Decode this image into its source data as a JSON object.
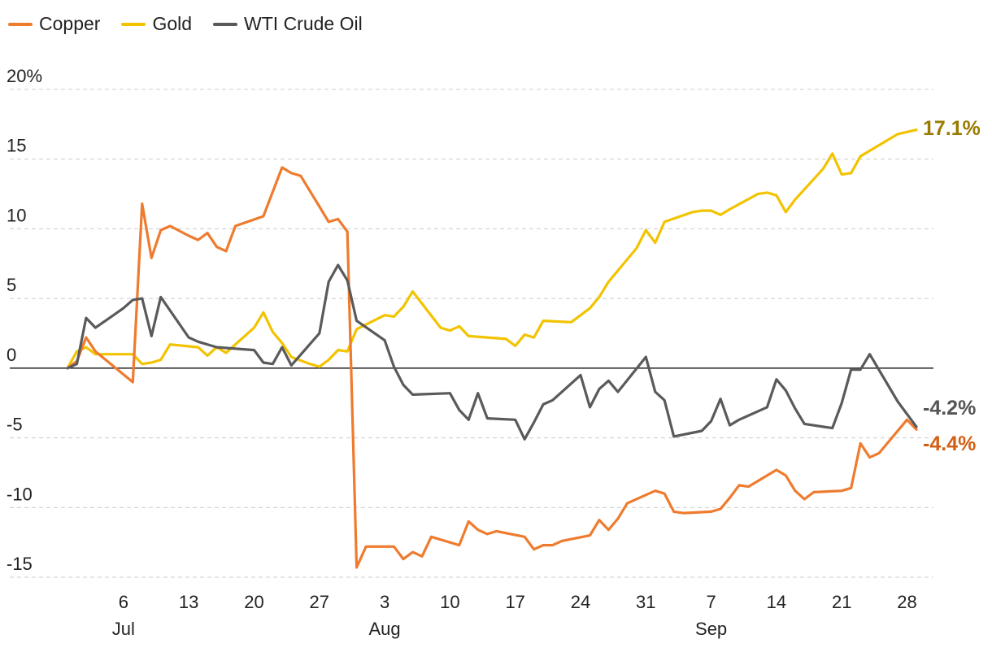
{
  "colors": {
    "copper": "#ee7b2e",
    "gold": "#f2c300",
    "oil": "#5a5a5a",
    "gold_label": "#9a7a00",
    "copper_label": "#d35f14",
    "oil_label": "#555555",
    "grid": "#cccccc",
    "zero_line": "#333333",
    "text": "#222222"
  },
  "chart_data": {
    "type": "line",
    "ylim": [
      -15,
      20
    ],
    "y_ticks": [
      20,
      15,
      10,
      5,
      0,
      -5,
      -10,
      -15
    ],
    "y_tick_labels": [
      "20%",
      "15",
      "10",
      "5",
      "0",
      "-5",
      "-10",
      "-15"
    ],
    "x_ticks": [
      {
        "day": 6,
        "label": "6",
        "month": "Jul"
      },
      {
        "day": 13,
        "label": "13",
        "month": ""
      },
      {
        "day": 20,
        "label": "20",
        "month": ""
      },
      {
        "day": 27,
        "label": "27",
        "month": ""
      },
      {
        "day": 34,
        "label": "3",
        "month": "Aug"
      },
      {
        "day": 41,
        "label": "10",
        "month": ""
      },
      {
        "day": 48,
        "label": "17",
        "month": ""
      },
      {
        "day": 55,
        "label": "24",
        "month": ""
      },
      {
        "day": 62,
        "label": "31",
        "month": ""
      },
      {
        "day": 69,
        "label": "7",
        "month": "Sep"
      },
      {
        "day": 76,
        "label": "14",
        "month": ""
      },
      {
        "day": 83,
        "label": "21",
        "month": ""
      },
      {
        "day": 90,
        "label": "28",
        "month": ""
      }
    ],
    "x_range": [
      0,
      92
    ],
    "series": [
      {
        "name": "Copper",
        "key": "copper",
        "end_label": "-4.4%",
        "points": [
          [
            0,
            0
          ],
          [
            1,
            0.5
          ],
          [
            2,
            2.2
          ],
          [
            3,
            1.2
          ],
          [
            7,
            -1
          ],
          [
            8,
            11.8
          ],
          [
            9,
            7.9
          ],
          [
            10,
            9.9
          ],
          [
            11,
            10.2
          ],
          [
            13,
            9.5
          ],
          [
            14,
            9.2
          ],
          [
            15,
            9.7
          ],
          [
            16,
            8.7
          ],
          [
            17,
            8.4
          ],
          [
            18,
            10.2
          ],
          [
            21,
            10.9
          ],
          [
            23,
            14.4
          ],
          [
            24,
            14.0
          ],
          [
            25,
            13.8
          ],
          [
            27,
            11.6
          ],
          [
            28,
            10.5
          ],
          [
            29,
            10.7
          ],
          [
            30,
            9.8
          ],
          [
            31,
            -14.3
          ],
          [
            32,
            -12.8
          ],
          [
            35,
            -12.8
          ],
          [
            36,
            -13.7
          ],
          [
            37,
            -13.2
          ],
          [
            38,
            -13.5
          ],
          [
            39,
            -12.1
          ],
          [
            42,
            -12.7
          ],
          [
            43,
            -11.0
          ],
          [
            44,
            -11.6
          ],
          [
            45,
            -11.9
          ],
          [
            46,
            -11.7
          ],
          [
            49,
            -12.1
          ],
          [
            50,
            -13.0
          ],
          [
            51,
            -12.7
          ],
          [
            52,
            -12.7
          ],
          [
            53,
            -12.4
          ],
          [
            56,
            -12.0
          ],
          [
            57,
            -10.9
          ],
          [
            58,
            -11.6
          ],
          [
            59,
            -10.8
          ],
          [
            60,
            -9.7
          ],
          [
            63,
            -8.8
          ],
          [
            64,
            -9.0
          ],
          [
            65,
            -10.3
          ],
          [
            66,
            -10.4
          ],
          [
            69,
            -10.3
          ],
          [
            70,
            -10.1
          ],
          [
            71,
            -9.3
          ],
          [
            72,
            -8.4
          ],
          [
            73,
            -8.5
          ],
          [
            76,
            -7.3
          ],
          [
            77,
            -7.7
          ],
          [
            78,
            -8.8
          ],
          [
            79,
            -9.4
          ],
          [
            80,
            -8.9
          ],
          [
            83,
            -8.8
          ],
          [
            84,
            -8.6
          ],
          [
            85,
            -5.4
          ],
          [
            86,
            -6.4
          ],
          [
            87,
            -6.1
          ],
          [
            90,
            -3.7
          ],
          [
            91,
            -4.4
          ]
        ]
      },
      {
        "name": "Gold",
        "key": "gold",
        "end_label": "17.1%",
        "points": [
          [
            0,
            0
          ],
          [
            1,
            1.2
          ],
          [
            2,
            1.5
          ],
          [
            3,
            1.0
          ],
          [
            7,
            1.0
          ],
          [
            8,
            0.3
          ],
          [
            9,
            0.4
          ],
          [
            10,
            0.6
          ],
          [
            11,
            1.7
          ],
          [
            14,
            1.5
          ],
          [
            15,
            0.9
          ],
          [
            16,
            1.5
          ],
          [
            17,
            1.1
          ],
          [
            20,
            2.9
          ],
          [
            21,
            4.0
          ],
          [
            22,
            2.6
          ],
          [
            23,
            1.8
          ],
          [
            24,
            0.8
          ],
          [
            26,
            0.3
          ],
          [
            27,
            0.1
          ],
          [
            28,
            0.6
          ],
          [
            29,
            1.3
          ],
          [
            30,
            1.2
          ],
          [
            31,
            2.8
          ],
          [
            34,
            3.8
          ],
          [
            35,
            3.7
          ],
          [
            36,
            4.4
          ],
          [
            37,
            5.5
          ],
          [
            40,
            2.9
          ],
          [
            41,
            2.7
          ],
          [
            42,
            3.0
          ],
          [
            43,
            2.3
          ],
          [
            47,
            2.1
          ],
          [
            48,
            1.6
          ],
          [
            49,
            2.4
          ],
          [
            50,
            2.2
          ],
          [
            51,
            3.4
          ],
          [
            54,
            3.3
          ],
          [
            55,
            3.8
          ],
          [
            56,
            4.3
          ],
          [
            57,
            5.1
          ],
          [
            58,
            6.2
          ],
          [
            61,
            8.6
          ],
          [
            62,
            9.9
          ],
          [
            63,
            9.0
          ],
          [
            64,
            10.5
          ],
          [
            67,
            11.2
          ],
          [
            68,
            11.3
          ],
          [
            69,
            11.3
          ],
          [
            70,
            11.0
          ],
          [
            71,
            11.4
          ],
          [
            74,
            12.5
          ],
          [
            75,
            12.6
          ],
          [
            76,
            12.4
          ],
          [
            77,
            11.2
          ],
          [
            78,
            12.1
          ],
          [
            81,
            14.3
          ],
          [
            82,
            15.4
          ],
          [
            83,
            13.9
          ],
          [
            84,
            14.0
          ],
          [
            85,
            15.2
          ],
          [
            88,
            16.4
          ],
          [
            89,
            16.8
          ],
          [
            91,
            17.1
          ]
        ]
      },
      {
        "name": "WTI Crude Oil",
        "key": "oil",
        "end_label": "-4.2%",
        "points": [
          [
            0,
            0
          ],
          [
            1,
            0.3
          ],
          [
            2,
            3.6
          ],
          [
            3,
            2.9
          ],
          [
            6,
            4.3
          ],
          [
            7,
            4.9
          ],
          [
            8,
            5.0
          ],
          [
            9,
            2.3
          ],
          [
            10,
            5.1
          ],
          [
            13,
            2.2
          ],
          [
            14,
            1.9
          ],
          [
            16,
            1.5
          ],
          [
            20,
            1.3
          ],
          [
            21,
            0.4
          ],
          [
            22,
            0.3
          ],
          [
            23,
            1.5
          ],
          [
            24,
            0.2
          ],
          [
            27,
            2.5
          ],
          [
            28,
            6.2
          ],
          [
            29,
            7.4
          ],
          [
            30,
            6.3
          ],
          [
            31,
            3.4
          ],
          [
            34,
            2.0
          ],
          [
            35,
            0.1
          ],
          [
            36,
            -1.2
          ],
          [
            37,
            -1.9
          ],
          [
            41,
            -1.8
          ],
          [
            42,
            -3.0
          ],
          [
            43,
            -3.7
          ],
          [
            44,
            -1.8
          ],
          [
            45,
            -3.6
          ],
          [
            48,
            -3.7
          ],
          [
            49,
            -5.1
          ],
          [
            50,
            -3.9
          ],
          [
            51,
            -2.6
          ],
          [
            52,
            -2.3
          ],
          [
            55,
            -0.5
          ],
          [
            56,
            -2.8
          ],
          [
            57,
            -1.5
          ],
          [
            58,
            -0.9
          ],
          [
            59,
            -1.7
          ],
          [
            62,
            0.8
          ],
          [
            63,
            -1.7
          ],
          [
            64,
            -2.3
          ],
          [
            65,
            -4.9
          ],
          [
            68,
            -4.5
          ],
          [
            69,
            -3.8
          ],
          [
            70,
            -2.2
          ],
          [
            71,
            -4.1
          ],
          [
            72,
            -3.7
          ],
          [
            75,
            -2.8
          ],
          [
            76,
            -0.8
          ],
          [
            77,
            -1.6
          ],
          [
            78,
            -2.9
          ],
          [
            79,
            -4.0
          ],
          [
            82,
            -4.3
          ],
          [
            83,
            -2.5
          ],
          [
            84,
            -0.1
          ],
          [
            85,
            -0.1
          ],
          [
            86,
            1.0
          ],
          [
            89,
            -2.4
          ],
          [
            91,
            -4.2
          ]
        ]
      }
    ]
  }
}
